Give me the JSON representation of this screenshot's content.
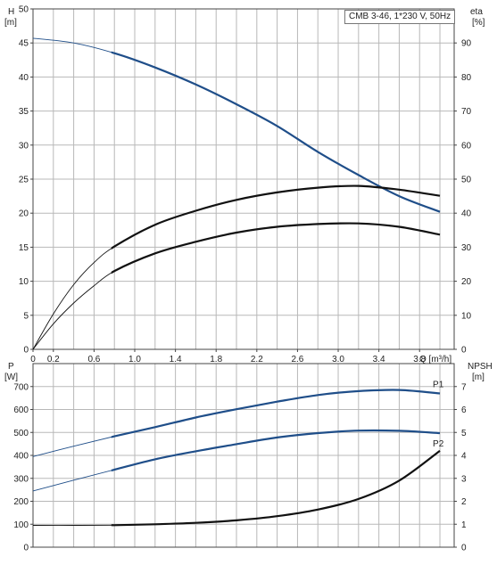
{
  "chart_data": [
    {
      "type": "line",
      "title": "CMB 3-46, 1*230 V, 50Hz",
      "xlabel": "Q [m³/h]",
      "ylabel": "H\n[m]",
      "y2label": "eta\n[%]",
      "xlim": [
        0,
        4.14
      ],
      "ylim": [
        0,
        50
      ],
      "y2lim": [
        0,
        100
      ],
      "xticks": [
        "0",
        "0.2",
        "0.6",
        "1.0",
        "1.4",
        "1.8",
        "2.2",
        "2.6",
        "3.0",
        "3.4",
        "3.8"
      ],
      "yticks": [
        "0",
        "5",
        "10",
        "15",
        "20",
        "25",
        "30",
        "35",
        "40",
        "45",
        "50"
      ],
      "y2ticks": [
        "0",
        "10",
        "20",
        "30",
        "40",
        "50",
        "60",
        "70",
        "80",
        "90"
      ],
      "grid": true,
      "series": [
        {
          "name": "H",
          "axis": "left",
          "color": "#1f4e89",
          "x": [
            0,
            0.4,
            0.8,
            1.2,
            1.6,
            2.0,
            2.4,
            2.8,
            3.2,
            3.6,
            4.0
          ],
          "y": [
            45.7,
            45.0,
            43.5,
            41.4,
            38.9,
            36.0,
            32.8,
            29.0,
            25.6,
            22.5,
            20.2
          ]
        },
        {
          "name": "eta",
          "axis": "right",
          "color": "#111111",
          "x": [
            0,
            0.2,
            0.4,
            0.6,
            0.8,
            1.2,
            1.6,
            2.0,
            2.4,
            2.8,
            3.2,
            3.6,
            4.0
          ],
          "y": [
            0,
            10.4,
            19.0,
            25.5,
            30.2,
            36.6,
            40.7,
            43.9,
            46.1,
            47.5,
            48.0,
            46.9,
            45.1
          ]
        },
        {
          "name": "eta2",
          "axis": "right",
          "color": "#111111",
          "x": [
            0,
            0.2,
            0.4,
            0.6,
            0.8,
            1.2,
            1.6,
            2.0,
            2.4,
            2.8,
            3.2,
            3.6,
            4.0
          ],
          "y": [
            0,
            7.5,
            13.6,
            18.7,
            23.0,
            28.2,
            31.6,
            34.3,
            36.0,
            36.8,
            37.0,
            36.0,
            33.7
          ]
        }
      ]
    },
    {
      "type": "line",
      "xlabel": "",
      "ylabel": "P\n[W]",
      "y2label": "NPSH\n[m]",
      "xlim": [
        0,
        4.14
      ],
      "ylim": [
        0,
        800
      ],
      "y2lim": [
        0,
        8
      ],
      "yticks": [
        "0",
        "100",
        "200",
        "300",
        "400",
        "500",
        "600",
        "700"
      ],
      "y2ticks": [
        "0",
        "1",
        "2",
        "3",
        "4",
        "5",
        "6",
        "7"
      ],
      "grid": true,
      "series": [
        {
          "name": "P1",
          "axis": "left",
          "color": "#1f4e89",
          "x": [
            0,
            0.4,
            0.8,
            1.2,
            1.6,
            2.0,
            2.4,
            2.8,
            3.2,
            3.6,
            4.0
          ],
          "y": [
            395,
            440,
            483,
            523,
            565,
            601,
            634,
            663,
            680,
            685,
            670
          ]
        },
        {
          "name": "P2",
          "axis": "left",
          "color": "#1f4e89",
          "x": [
            0,
            0.4,
            0.8,
            1.2,
            1.6,
            2.0,
            2.4,
            2.8,
            3.2,
            3.6,
            4.0
          ],
          "y": [
            245,
            292,
            338,
            383,
            418,
            449,
            478,
            497,
            508,
            507,
            497
          ]
        },
        {
          "name": "NPSH",
          "axis": "right",
          "color": "#111111",
          "x": [
            0,
            0.4,
            0.8,
            1.2,
            1.6,
            2.0,
            2.4,
            2.8,
            3.2,
            3.6,
            4.0
          ],
          "y": [
            0.95,
            0.95,
            0.96,
            1.0,
            1.06,
            1.17,
            1.35,
            1.64,
            2.1,
            2.9,
            4.2
          ]
        }
      ]
    }
  ]
}
